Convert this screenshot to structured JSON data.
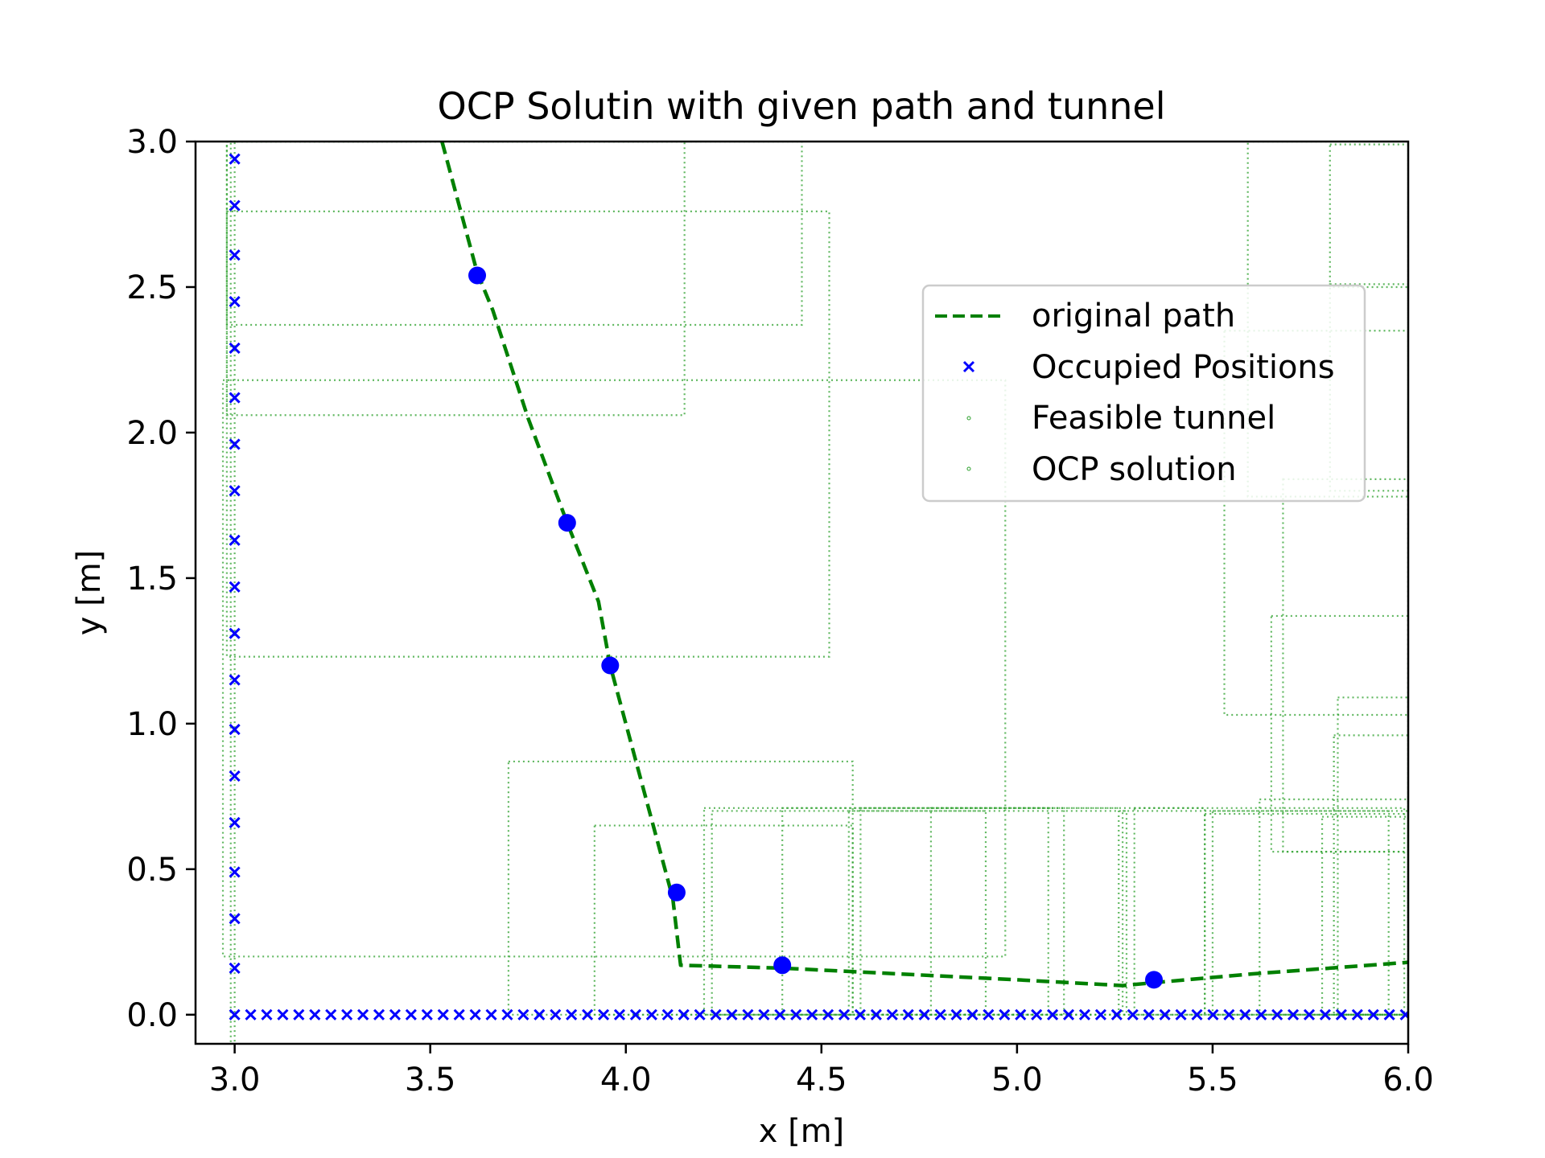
{
  "chart_data": {
    "type": "scatter",
    "title": "OCP Solutin with given path and tunnel",
    "xlabel": "x [m]",
    "ylabel": "y [m]",
    "xlim": [
      2.9,
      6.0
    ],
    "ylim": [
      -0.1,
      3.0
    ],
    "xticks": [
      "3.0",
      "3.5",
      "4.0",
      "4.5",
      "5.0",
      "5.5",
      "6.0"
    ],
    "yticks": [
      "0.0",
      "0.5",
      "1.0",
      "1.5",
      "2.0",
      "2.5",
      "3.0"
    ],
    "grid": false,
    "legend_position": "upper-right",
    "colors": {
      "path": "#008000",
      "occupied": "#0000ff",
      "tunnel": "#2ca02c",
      "ocp": "#0000ff"
    },
    "legend": [
      {
        "label": "original path",
        "kind": "dashed-line"
      },
      {
        "label": "Occupied Positions",
        "kind": "x-marker"
      },
      {
        "label": "Feasible tunnel",
        "kind": "small-dot"
      },
      {
        "label": "OCP solution",
        "kind": "small-dot"
      }
    ],
    "series": [
      {
        "name": "original path",
        "kind": "dashed-line",
        "x": [
          3.53,
          3.62,
          3.66,
          3.75,
          3.85,
          3.93,
          3.96,
          4.04,
          4.12,
          4.14,
          4.4,
          4.7,
          5.0,
          5.27,
          5.35,
          5.6,
          6.0
        ],
        "y": [
          3.0,
          2.55,
          2.42,
          2.05,
          1.69,
          1.42,
          1.2,
          0.8,
          0.4,
          0.17,
          0.16,
          0.14,
          0.12,
          0.1,
          0.11,
          0.14,
          0.18
        ]
      },
      {
        "name": "Occupied Positions",
        "kind": "x-marker",
        "x_left_column": 3.0,
        "y_left_column": [
          0.16,
          0.33,
          0.49,
          0.66,
          0.82,
          0.98,
          1.15,
          1.31,
          1.47,
          1.63,
          1.8,
          1.96,
          2.12,
          2.29,
          2.45,
          2.61,
          2.78,
          2.94
        ],
        "y_bottom_row": 0.0,
        "x_bottom_row_start": 3.0,
        "x_bottom_row_end": 6.0,
        "x_bottom_row_step": 0.041
      },
      {
        "name": "Feasible tunnel",
        "kind": "rectangles",
        "rects": [
          {
            "x0": 2.97,
            "y0": 0.2,
            "x1": 4.97,
            "y1": 2.18
          },
          {
            "x0": 2.98,
            "y0": 1.23,
            "x1": 4.52,
            "y1": 2.76
          },
          {
            "x0": 2.98,
            "y0": 2.06,
            "x1": 4.15,
            "y1": 3.0
          },
          {
            "x0": 2.98,
            "y0": 2.37,
            "x1": 4.45,
            "y1": 3.0
          },
          {
            "x0": 2.99,
            "y0": -0.1,
            "x1": 3.0,
            "y1": 3.0
          },
          {
            "x0": 3.7,
            "y0": 0.0,
            "x1": 4.58,
            "y1": 0.87
          },
          {
            "x0": 3.92,
            "y0": 0.0,
            "x1": 4.58,
            "y1": 0.65
          },
          {
            "x0": 4.2,
            "y0": 0.0,
            "x1": 5.12,
            "y1": 0.71
          },
          {
            "x0": 4.22,
            "y0": 0.0,
            "x1": 4.92,
            "y1": 0.7
          },
          {
            "x0": 4.4,
            "y0": 0.0,
            "x1": 5.08,
            "y1": 0.71
          },
          {
            "x0": 4.57,
            "y0": 0.0,
            "x1": 5.28,
            "y1": 0.7
          },
          {
            "x0": 4.6,
            "y0": 0.0,
            "x1": 5.26,
            "y1": 0.71
          },
          {
            "x0": 4.78,
            "y0": 0.0,
            "x1": 5.48,
            "y1": 0.71
          },
          {
            "x0": 5.27,
            "y0": 0.0,
            "x1": 5.95,
            "y1": 0.7
          },
          {
            "x0": 5.3,
            "y0": 0.0,
            "x1": 5.99,
            "y1": 0.71
          },
          {
            "x0": 5.48,
            "y0": 0.0,
            "x1": 6.0,
            "y1": 0.69
          },
          {
            "x0": 5.5,
            "y0": 0.0,
            "x1": 6.0,
            "y1": 0.7
          },
          {
            "x0": 5.62,
            "y0": 0.0,
            "x1": 6.0,
            "y1": 0.74
          },
          {
            "x0": 5.78,
            "y0": 0.0,
            "x1": 6.0,
            "y1": 0.68
          },
          {
            "x0": 5.81,
            "y0": 0.0,
            "x1": 6.0,
            "y1": 0.96
          },
          {
            "x0": 5.82,
            "y0": 0.0,
            "x1": 6.0,
            "y1": 1.09
          },
          {
            "x0": 5.68,
            "y0": 0.56,
            "x1": 6.0,
            "y1": 1.84
          },
          {
            "x0": 5.65,
            "y0": 0.56,
            "x1": 6.0,
            "y1": 1.37
          },
          {
            "x0": 5.53,
            "y0": 1.03,
            "x1": 6.0,
            "y1": 2.35
          },
          {
            "x0": 5.59,
            "y0": 1.78,
            "x1": 6.0,
            "y1": 3.0
          },
          {
            "x0": 5.8,
            "y0": 1.8,
            "x1": 6.0,
            "y1": 2.51
          },
          {
            "x0": 5.8,
            "y0": 2.5,
            "x1": 6.0,
            "y1": 2.99
          }
        ]
      },
      {
        "name": "OCP solution",
        "kind": "points",
        "x": [
          3.62,
          3.85,
          3.96,
          4.13,
          4.4,
          5.35
        ],
        "y": [
          2.54,
          1.69,
          1.2,
          0.42,
          0.17,
          0.12
        ]
      }
    ]
  }
}
